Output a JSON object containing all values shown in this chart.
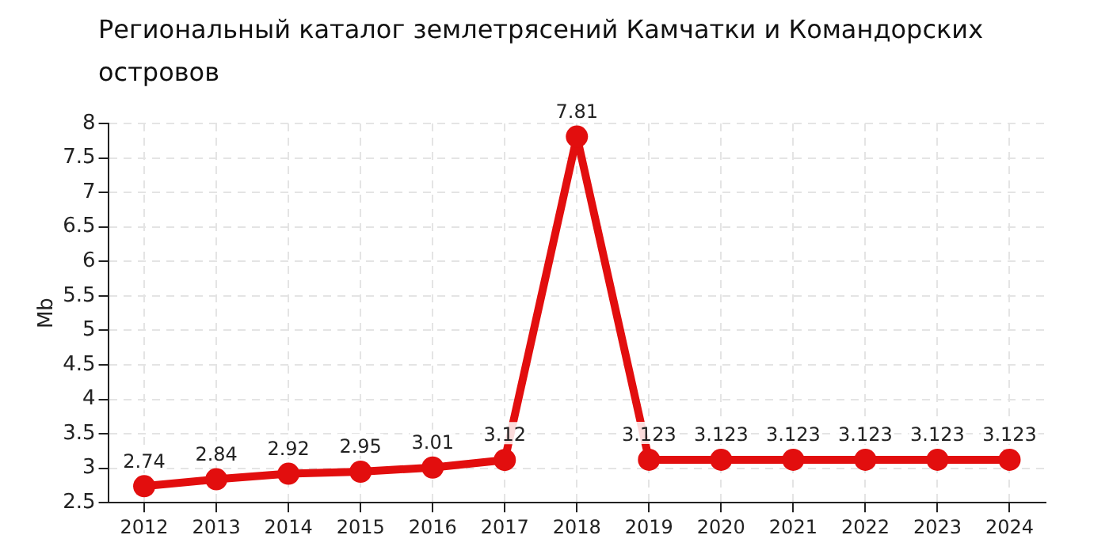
{
  "chart_data": {
    "type": "line",
    "title": "Региональный каталог землетрясений Камчатки и Командорских островов",
    "ylabel": "Mb",
    "categories": [
      "2012",
      "2013",
      "2014",
      "2015",
      "2016",
      "2017",
      "2018",
      "2019",
      "2020",
      "2021",
      "2022",
      "2023",
      "2024"
    ],
    "series": [
      {
        "color": "#e20e0e",
        "values": [
          2.74,
          2.84,
          2.92,
          2.95,
          3.01,
          3.12,
          7.81,
          3.123,
          3.123,
          3.123,
          3.123,
          3.123,
          3.123
        ]
      }
    ],
    "ylim": [
      2.5,
      8
    ],
    "yticks": [
      2.5,
      3,
      3.5,
      4,
      4.5,
      5,
      5.5,
      6,
      6.5,
      7,
      7.5,
      8
    ],
    "grid": true,
    "legend": false,
    "marker": "circle",
    "line_style": "solid",
    "data_labels": true
  }
}
